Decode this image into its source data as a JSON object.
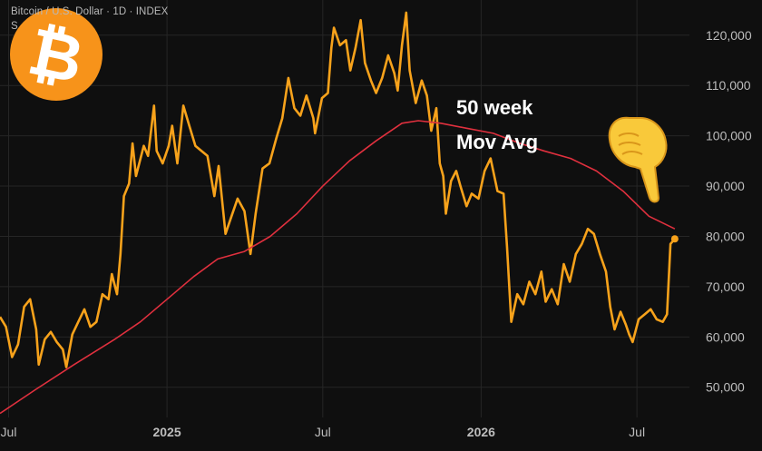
{
  "header": {
    "symbol_line": "Bitcoin / U.S. Dollar · 1D · INDEX",
    "sub_line": "S"
  },
  "logo": {
    "icon": "bitcoin-logo-icon",
    "color": "#f7931a",
    "glyph": "₿"
  },
  "annotation": {
    "line1": "50 week",
    "line2": "Mov Avg",
    "pointer_icon": "pointing-down-hand-icon",
    "pointer_glyph": "👇"
  },
  "colors": {
    "background": "#0f0f0f",
    "price": "#f7a21b",
    "moving_average": "#e0303e",
    "grid": "#262626",
    "axis_text": "#bdbdbd"
  },
  "chart_data": {
    "type": "line",
    "title": "",
    "xlabel": "",
    "ylabel": "",
    "ylim": [
      44000,
      127000
    ],
    "xlim": [
      "2024-06-21",
      "2026-08-31"
    ],
    "y_ticks": [
      50000,
      60000,
      70000,
      80000,
      90000,
      100000,
      110000,
      120000
    ],
    "y_tick_labels": [
      "50,000",
      "60,000",
      "70,000",
      "80,000",
      "90,000",
      "100,000",
      "110,000",
      "120,000"
    ],
    "x_ticks": [
      "2024-07-01",
      "2025-01-01",
      "2025-07-01",
      "2026-01-01",
      "2026-07-01"
    ],
    "x_tick_labels": [
      "Jul",
      "2025",
      "Jul",
      "2026",
      "Jul"
    ],
    "grid": true,
    "series": [
      {
        "name": "",
        "color": "#f7a21b",
        "points": [
          [
            "2024-06-21",
            64000
          ],
          [
            "2024-06-28",
            62000
          ],
          [
            "2024-07-05",
            56000
          ],
          [
            "2024-07-12",
            58500
          ],
          [
            "2024-07-19",
            66000
          ],
          [
            "2024-07-26",
            67500
          ],
          [
            "2024-08-02",
            61500
          ],
          [
            "2024-08-05",
            54500
          ],
          [
            "2024-08-12",
            59500
          ],
          [
            "2024-08-19",
            61000
          ],
          [
            "2024-08-26",
            59000
          ],
          [
            "2024-09-02",
            57500
          ],
          [
            "2024-09-06",
            54000
          ],
          [
            "2024-09-13",
            60500
          ],
          [
            "2024-09-20",
            63000
          ],
          [
            "2024-09-27",
            65500
          ],
          [
            "2024-10-04",
            62000
          ],
          [
            "2024-10-11",
            63000
          ],
          [
            "2024-10-18",
            68500
          ],
          [
            "2024-10-25",
            67500
          ],
          [
            "2024-10-29",
            72500
          ],
          [
            "2024-11-04",
            68500
          ],
          [
            "2024-11-08",
            76500
          ],
          [
            "2024-11-12",
            88000
          ],
          [
            "2024-11-18",
            90500
          ],
          [
            "2024-11-22",
            98500
          ],
          [
            "2024-11-26",
            92000
          ],
          [
            "2024-12-05",
            98000
          ],
          [
            "2024-12-10",
            96000
          ],
          [
            "2024-12-17",
            106000
          ],
          [
            "2024-12-20",
            97000
          ],
          [
            "2024-12-27",
            94500
          ],
          [
            "2025-01-03",
            98000
          ],
          [
            "2025-01-07",
            102000
          ],
          [
            "2025-01-13",
            94500
          ],
          [
            "2025-01-20",
            106000
          ],
          [
            "2025-01-27",
            102000
          ],
          [
            "2025-02-03",
            98000
          ],
          [
            "2025-02-10",
            97000
          ],
          [
            "2025-02-17",
            96000
          ],
          [
            "2025-02-25",
            88000
          ],
          [
            "2025-03-02",
            94000
          ],
          [
            "2025-03-10",
            80500
          ],
          [
            "2025-03-17",
            84000
          ],
          [
            "2025-03-24",
            87500
          ],
          [
            "2025-04-01",
            85000
          ],
          [
            "2025-04-08",
            76500
          ],
          [
            "2025-04-14",
            84500
          ],
          [
            "2025-04-22",
            93500
          ],
          [
            "2025-04-30",
            94500
          ],
          [
            "2025-05-08",
            99500
          ],
          [
            "2025-05-15",
            103500
          ],
          [
            "2025-05-22",
            111500
          ],
          [
            "2025-05-29",
            105500
          ],
          [
            "2025-06-05",
            104000
          ],
          [
            "2025-06-12",
            108000
          ],
          [
            "2025-06-20",
            103500
          ],
          [
            "2025-06-22",
            100500
          ],
          [
            "2025-06-30",
            107500
          ],
          [
            "2025-07-07",
            108500
          ],
          [
            "2025-07-11",
            117500
          ],
          [
            "2025-07-14",
            121500
          ],
          [
            "2025-07-21",
            118000
          ],
          [
            "2025-07-28",
            119000
          ],
          [
            "2025-08-02",
            113000
          ],
          [
            "2025-08-08",
            117500
          ],
          [
            "2025-08-14",
            123000
          ],
          [
            "2025-08-19",
            114500
          ],
          [
            "2025-08-26",
            111000
          ],
          [
            "2025-09-01",
            108500
          ],
          [
            "2025-09-08",
            111500
          ],
          [
            "2025-09-15",
            116000
          ],
          [
            "2025-09-22",
            112500
          ],
          [
            "2025-09-26",
            109000
          ],
          [
            "2025-10-01",
            118000
          ],
          [
            "2025-10-06",
            124500
          ],
          [
            "2025-10-10",
            113000
          ],
          [
            "2025-10-17",
            106500
          ],
          [
            "2025-10-24",
            111000
          ],
          [
            "2025-10-30",
            108000
          ],
          [
            "2025-11-04",
            101000
          ],
          [
            "2025-11-10",
            105500
          ],
          [
            "2025-11-14",
            94500
          ],
          [
            "2025-11-18",
            92000
          ],
          [
            "2025-11-21",
            84500
          ],
          [
            "2025-11-27",
            91000
          ],
          [
            "2025-12-03",
            93000
          ],
          [
            "2025-12-08",
            90000
          ],
          [
            "2025-12-15",
            86000
          ],
          [
            "2025-12-21",
            88500
          ],
          [
            "2025-12-29",
            87500
          ],
          [
            "2026-01-05",
            93000
          ],
          [
            "2026-01-12",
            95500
          ],
          [
            "2026-01-20",
            89000
          ],
          [
            "2026-01-27",
            88500
          ],
          [
            "2026-01-31",
            78000
          ],
          [
            "2026-02-05",
            63000
          ],
          [
            "2026-02-12",
            68500
          ],
          [
            "2026-02-19",
            66500
          ],
          [
            "2026-02-26",
            71000
          ],
          [
            "2026-03-05",
            68500
          ],
          [
            "2026-03-12",
            73000
          ],
          [
            "2026-03-17",
            67000
          ],
          [
            "2026-03-24",
            69500
          ],
          [
            "2026-03-31",
            66500
          ],
          [
            "2026-04-07",
            74500
          ],
          [
            "2026-04-14",
            71000
          ],
          [
            "2026-04-21",
            76500
          ],
          [
            "2026-04-28",
            78500
          ],
          [
            "2026-05-05",
            81500
          ],
          [
            "2026-05-12",
            80500
          ],
          [
            "2026-05-19",
            76500
          ],
          [
            "2026-05-26",
            73000
          ],
          [
            "2026-05-31",
            66000
          ],
          [
            "2026-06-05",
            61500
          ],
          [
            "2026-06-12",
            65000
          ],
          [
            "2026-06-18",
            62500
          ],
          [
            "2026-06-22",
            60500
          ],
          [
            "2026-06-26",
            59000
          ],
          [
            "2026-07-03",
            63500
          ],
          [
            "2026-07-10",
            64500
          ],
          [
            "2026-07-17",
            65500
          ],
          [
            "2026-07-24",
            63500
          ],
          [
            "2026-07-31",
            63000
          ],
          [
            "2026-08-05",
            64500
          ],
          [
            "2026-08-09",
            78500
          ],
          [
            "2026-08-14",
            79500
          ]
        ]
      },
      {
        "name": "50 week Mov Avg",
        "color": "#e0303e",
        "points": [
          [
            "2024-06-21",
            44800
          ],
          [
            "2024-08-01",
            49500
          ],
          [
            "2024-09-15",
            54500
          ],
          [
            "2024-11-01",
            59500
          ],
          [
            "2024-12-01",
            63000
          ],
          [
            "2025-01-01",
            67500
          ],
          [
            "2025-02-01",
            72000
          ],
          [
            "2025-03-01",
            75500
          ],
          [
            "2025-04-01",
            77000
          ],
          [
            "2025-05-01",
            80000
          ],
          [
            "2025-06-01",
            84500
          ],
          [
            "2025-07-01",
            90000
          ],
          [
            "2025-08-01",
            95000
          ],
          [
            "2025-09-01",
            99000
          ],
          [
            "2025-10-01",
            102500
          ],
          [
            "2025-10-20",
            103000
          ],
          [
            "2025-11-15",
            102500
          ],
          [
            "2025-12-15",
            101500
          ],
          [
            "2026-01-15",
            100500
          ],
          [
            "2026-02-15",
            98500
          ],
          [
            "2026-03-15",
            97000
          ],
          [
            "2026-04-15",
            95500
          ],
          [
            "2026-05-15",
            93000
          ],
          [
            "2026-06-15",
            89000
          ],
          [
            "2026-07-15",
            84000
          ],
          [
            "2026-08-14",
            81500
          ]
        ]
      }
    ]
  }
}
